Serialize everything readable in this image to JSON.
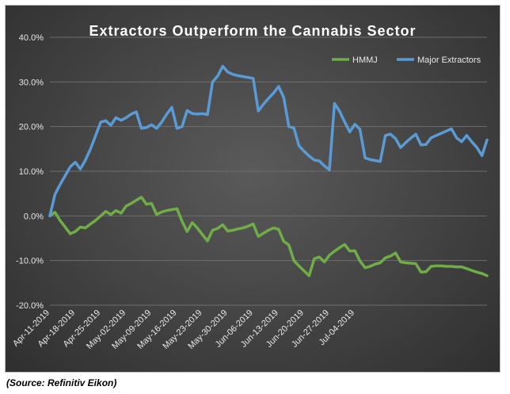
{
  "chart_data": {
    "type": "line",
    "title": "Extractors Outperform the Cannabis Sector",
    "xlabel": "",
    "ylabel": "",
    "ylim": [
      -20,
      40
    ],
    "y_ticks": [
      "40.0%",
      "30.0%",
      "20.0%",
      "10.0%",
      "0.0%",
      "-10.0%",
      "-20.0%"
    ],
    "y_tick_values": [
      40,
      30,
      20,
      10,
      0,
      -10,
      -20
    ],
    "x_tick_labels": [
      "Apr-11-2019",
      "Apr-18-2019",
      "Apr-25-2019",
      "May-02-2019",
      "May-09-2019",
      "May-16-2019",
      "May-23-2019",
      "May-30-2019",
      "Jun-06-2019",
      "Jun-13-2019",
      "Jun-20-2019",
      "Jun-27-2019",
      "Jul-04-2019"
    ],
    "grid": true,
    "legend_position": "top-right",
    "series": [
      {
        "name": "HMMJ",
        "color": "#70ad47",
        "points": [
          [
            0,
            0
          ],
          [
            1,
            0.8
          ],
          [
            2,
            -1
          ],
          [
            3,
            -2.5
          ],
          [
            4,
            -4
          ],
          [
            5,
            -3.5
          ],
          [
            6,
            -2.5
          ],
          [
            7,
            -2.7
          ],
          [
            8,
            -1.8
          ],
          [
            9,
            -1
          ],
          [
            10,
            0
          ],
          [
            11,
            1
          ],
          [
            12,
            0.3
          ],
          [
            13,
            1.2
          ],
          [
            14,
            0.6
          ],
          [
            15,
            2.2
          ],
          [
            16,
            2.8
          ],
          [
            17,
            3.5
          ],
          [
            18,
            4.2
          ],
          [
            19,
            2.6
          ],
          [
            20,
            2.8
          ],
          [
            21,
            0.3
          ],
          [
            22,
            0.9
          ],
          [
            23,
            1.2
          ],
          [
            24,
            1.4
          ],
          [
            25,
            1.6
          ],
          [
            26,
            -1.2
          ],
          [
            27,
            -3.5
          ],
          [
            28,
            -1.5
          ],
          [
            29,
            -2.7
          ],
          [
            30,
            -4.2
          ],
          [
            31,
            -5.6
          ],
          [
            32,
            -3.2
          ],
          [
            33,
            -2.8
          ],
          [
            34,
            -2
          ],
          [
            35,
            -3.4
          ],
          [
            36,
            -3.2
          ],
          [
            37,
            -2.9
          ],
          [
            38,
            -2.7
          ],
          [
            39,
            -2.3
          ],
          [
            40,
            -1.8
          ],
          [
            41,
            -4.6
          ],
          [
            42,
            -3.9
          ],
          [
            43,
            -3.2
          ],
          [
            44,
            -2.7
          ],
          [
            45,
            -3
          ],
          [
            46,
            -5.7
          ],
          [
            47,
            -6.5
          ],
          [
            48,
            -10
          ],
          [
            49,
            -11.2
          ],
          [
            50,
            -12.3
          ],
          [
            51,
            -13.4
          ],
          [
            52,
            -9.6
          ],
          [
            53,
            -9.2
          ],
          [
            54,
            -10.3
          ],
          [
            55,
            -8.8
          ],
          [
            56,
            -7.9
          ],
          [
            57,
            -7.1
          ],
          [
            58,
            -6.4
          ],
          [
            59,
            -7.9
          ],
          [
            60,
            -7.8
          ],
          [
            61,
            -10.1
          ],
          [
            62,
            -11.6
          ],
          [
            63,
            -11.3
          ],
          [
            64,
            -10.8
          ],
          [
            65,
            -10.5
          ],
          [
            66,
            -9.4
          ],
          [
            67,
            -9
          ],
          [
            68,
            -8.3
          ],
          [
            69,
            -10.3
          ],
          [
            70,
            -10.5
          ],
          [
            71,
            -10.6
          ],
          [
            72,
            -10.7
          ],
          [
            73,
            -12.6
          ],
          [
            74,
            -12.5
          ],
          [
            75,
            -11.3
          ],
          [
            76,
            -11.2
          ],
          [
            77,
            -11.2
          ],
          [
            78,
            -11.3
          ],
          [
            79,
            -11.3
          ],
          [
            80,
            -11.4
          ],
          [
            81,
            -11.4
          ],
          [
            82,
            -11.8
          ],
          [
            83,
            -12.2
          ],
          [
            84,
            -12.6
          ],
          [
            85,
            -12.9
          ],
          [
            86,
            -13.4
          ]
        ]
      },
      {
        "name": "Major Extractors",
        "color": "#5b9bd5",
        "points": [
          [
            0,
            0
          ],
          [
            1,
            4.8
          ],
          [
            2,
            7
          ],
          [
            3,
            9
          ],
          [
            4,
            11
          ],
          [
            5,
            12
          ],
          [
            6,
            10.5
          ],
          [
            7,
            12.5
          ],
          [
            8,
            15
          ],
          [
            9,
            18
          ],
          [
            10,
            21
          ],
          [
            11,
            21.3
          ],
          [
            12,
            20.3
          ],
          [
            13,
            22
          ],
          [
            14,
            21.4
          ],
          [
            15,
            22
          ],
          [
            16,
            22.8
          ],
          [
            17,
            23.3
          ],
          [
            18,
            19.6
          ],
          [
            19,
            19.8
          ],
          [
            20,
            20.4
          ],
          [
            21,
            19.6
          ],
          [
            22,
            21
          ],
          [
            23,
            22.8
          ],
          [
            24,
            24.3
          ],
          [
            25,
            19.6
          ],
          [
            26,
            20
          ],
          [
            27,
            23.6
          ],
          [
            28,
            22.9
          ],
          [
            29,
            22.8
          ],
          [
            30,
            22.9
          ],
          [
            31,
            22.7
          ],
          [
            32,
            30
          ],
          [
            33,
            31.3
          ],
          [
            34,
            33.5
          ],
          [
            35,
            32.2
          ],
          [
            36,
            31.7
          ],
          [
            37,
            31.4
          ],
          [
            38,
            31.2
          ],
          [
            39,
            31
          ],
          [
            40,
            30.8
          ],
          [
            41,
            23.5
          ],
          [
            42,
            25
          ],
          [
            43,
            26.3
          ],
          [
            44,
            27.5
          ],
          [
            45,
            29
          ],
          [
            46,
            26.5
          ],
          [
            47,
            20
          ],
          [
            48,
            19.7
          ],
          [
            49,
            15.7
          ],
          [
            50,
            14.5
          ],
          [
            51,
            13.4
          ],
          [
            52,
            12.5
          ],
          [
            53,
            12.3
          ],
          [
            54,
            11.2
          ],
          [
            55,
            10.3
          ],
          [
            56,
            25.2
          ],
          [
            57,
            23.4
          ],
          [
            58,
            21
          ],
          [
            59,
            18.8
          ],
          [
            60,
            20.5
          ],
          [
            61,
            19.4
          ],
          [
            62,
            13
          ],
          [
            63,
            12.6
          ],
          [
            64,
            12.4
          ],
          [
            65,
            12.2
          ],
          [
            66,
            18
          ],
          [
            67,
            18.3
          ],
          [
            68,
            17.3
          ],
          [
            69,
            15.3
          ],
          [
            70,
            16.4
          ],
          [
            71,
            17.4
          ],
          [
            72,
            18.3
          ],
          [
            73,
            15.9
          ],
          [
            74,
            16
          ],
          [
            75,
            17.5
          ],
          [
            76,
            18
          ],
          [
            77,
            18.5
          ],
          [
            78,
            19
          ],
          [
            79,
            19.5
          ],
          [
            80,
            17.5
          ],
          [
            81,
            16.6
          ],
          [
            82,
            18
          ],
          [
            83,
            16.6
          ],
          [
            84,
            15.3
          ],
          [
            85,
            13.5
          ],
          [
            86,
            17
          ]
        ]
      }
    ]
  },
  "source_note": "(Source: Refinitiv Eikon)"
}
